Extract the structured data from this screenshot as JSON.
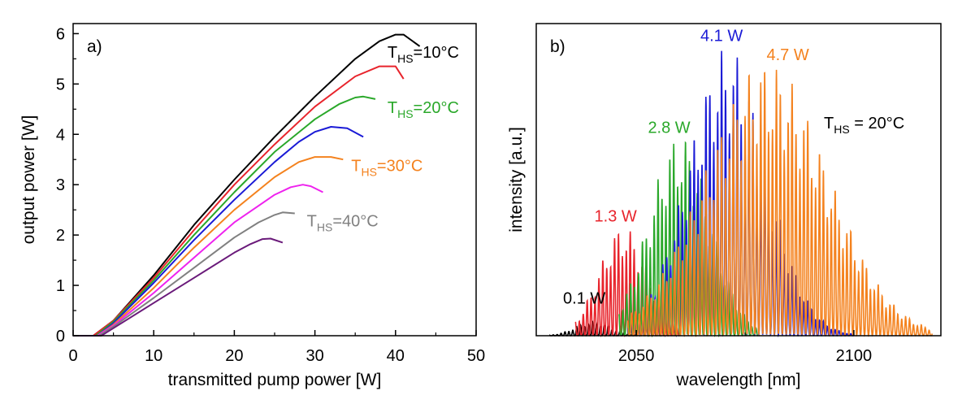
{
  "chart_data": [
    {
      "type": "line",
      "panel_label": "a)",
      "xlabel": "transmitted pump power [W]",
      "ylabel": "output power [W]",
      "xlim": [
        0,
        50
      ],
      "ylim": [
        0,
        6.2
      ],
      "xticks": [
        0,
        10,
        20,
        30,
        40,
        50
      ],
      "yticks": [
        0,
        1,
        2,
        3,
        4,
        5,
        6
      ],
      "grid": false,
      "series": [
        {
          "color": "#000000",
          "x": [
            0,
            2.5,
            5,
            10,
            15,
            20,
            25,
            30,
            35,
            38,
            40,
            41,
            43
          ],
          "y": [
            0,
            0,
            0.3,
            1.2,
            2.2,
            3.1,
            3.95,
            4.75,
            5.5,
            5.85,
            5.98,
            5.98,
            5.75
          ]
        },
        {
          "color": "#e8242c",
          "x": [
            0,
            2.5,
            5,
            10,
            15,
            20,
            25,
            30,
            35,
            38,
            40,
            41
          ],
          "y": [
            0,
            0,
            0.3,
            1.15,
            2.1,
            3.0,
            3.8,
            4.55,
            5.15,
            5.35,
            5.35,
            5.1
          ]
        },
        {
          "color": "#2aa82a",
          "x": [
            0,
            2.8,
            5,
            10,
            15,
            20,
            25,
            30,
            33,
            35,
            36,
            37.5
          ],
          "y": [
            0,
            0,
            0.28,
            1.1,
            2.0,
            2.85,
            3.65,
            4.3,
            4.6,
            4.73,
            4.75,
            4.7
          ]
        },
        {
          "color": "#1a1ad6",
          "x": [
            0,
            3,
            5,
            10,
            15,
            20,
            25,
            28,
            30,
            32,
            34,
            36
          ],
          "y": [
            0,
            0,
            0.25,
            1.05,
            1.9,
            2.7,
            3.45,
            3.85,
            4.05,
            4.15,
            4.12,
            3.95
          ]
        },
        {
          "color": "#f4821e",
          "x": [
            0,
            3,
            5,
            10,
            15,
            20,
            25,
            28,
            30,
            32,
            33.5
          ],
          "y": [
            0,
            0,
            0.22,
            0.95,
            1.75,
            2.5,
            3.15,
            3.45,
            3.55,
            3.55,
            3.5
          ]
        },
        {
          "color": "#ee22ee",
          "x": [
            0,
            3,
            5,
            10,
            15,
            20,
            25,
            27,
            28.5,
            29.5,
            31
          ],
          "y": [
            0,
            0,
            0.2,
            0.85,
            1.55,
            2.25,
            2.8,
            2.95,
            3.0,
            2.97,
            2.85
          ]
        },
        {
          "color": "#808080",
          "x": [
            0,
            3.2,
            5,
            10,
            15,
            20,
            23,
            25,
            26,
            27.5
          ],
          "y": [
            0,
            0,
            0.18,
            0.75,
            1.35,
            1.95,
            2.25,
            2.4,
            2.45,
            2.43
          ]
        },
        {
          "color": "#6a1a7a",
          "x": [
            0,
            3.5,
            5,
            10,
            15,
            20,
            22,
            23.5,
            24.5,
            26
          ],
          "y": [
            0,
            0,
            0.15,
            0.65,
            1.15,
            1.65,
            1.82,
            1.92,
            1.93,
            1.85
          ]
        }
      ],
      "annotations": [
        {
          "main": "T",
          "sub": "HS",
          "tail": "=10°C",
          "color": "#000000",
          "x": 39,
          "y": 5.65
        },
        {
          "main": "T",
          "sub": "HS",
          "tail": "=20°C",
          "color": "#2aa82a",
          "x": 39,
          "y": 4.55
        },
        {
          "main": "T",
          "sub": "HS",
          "tail": "=30°C",
          "color": "#f4821e",
          "x": 34.5,
          "y": 3.4
        },
        {
          "main": "T",
          "sub": "HS",
          "tail": "=40°C",
          "color": "#808080",
          "x": 29,
          "y": 2.3
        }
      ]
    },
    {
      "type": "line",
      "panel_label": "b)",
      "xlabel": "wavelength [nm]",
      "ylabel": "intensity [a.u.]",
      "xlim": [
        2027,
        2120
      ],
      "ylim": [
        0,
        1.08
      ],
      "xticks": [
        2050,
        2100
      ],
      "grid": false,
      "series": [
        {
          "name": "0.1 W",
          "color": "#000000",
          "center": 2040,
          "width": 4,
          "peak": 0.05,
          "lmin": 2030,
          "lmax": 2050
        },
        {
          "name": "1.3 W",
          "color": "#e8242c",
          "center": 2047,
          "width": 5.5,
          "peak": 0.38,
          "lmin": 2036,
          "lmax": 2060
        },
        {
          "name": "2.8 W",
          "color": "#2aa82a",
          "center": 2060,
          "width": 7,
          "peak": 0.7,
          "lmin": 2046,
          "lmax": 2078
        },
        {
          "name": "4.1 W",
          "color": "#1a1ad6",
          "center": 2071,
          "width": 9,
          "peak": 1.0,
          "lmin": 2048,
          "lmax": 2100
        },
        {
          "name": "4.7 W",
          "color": "#f4821e",
          "center": 2080,
          "width": 14,
          "peak": 0.95,
          "lmin": 2048,
          "lmax": 2118
        }
      ],
      "annotation": {
        "main": "T",
        "sub": "HS",
        "tail": " = 20°C",
        "color": "#000000"
      }
    }
  ]
}
